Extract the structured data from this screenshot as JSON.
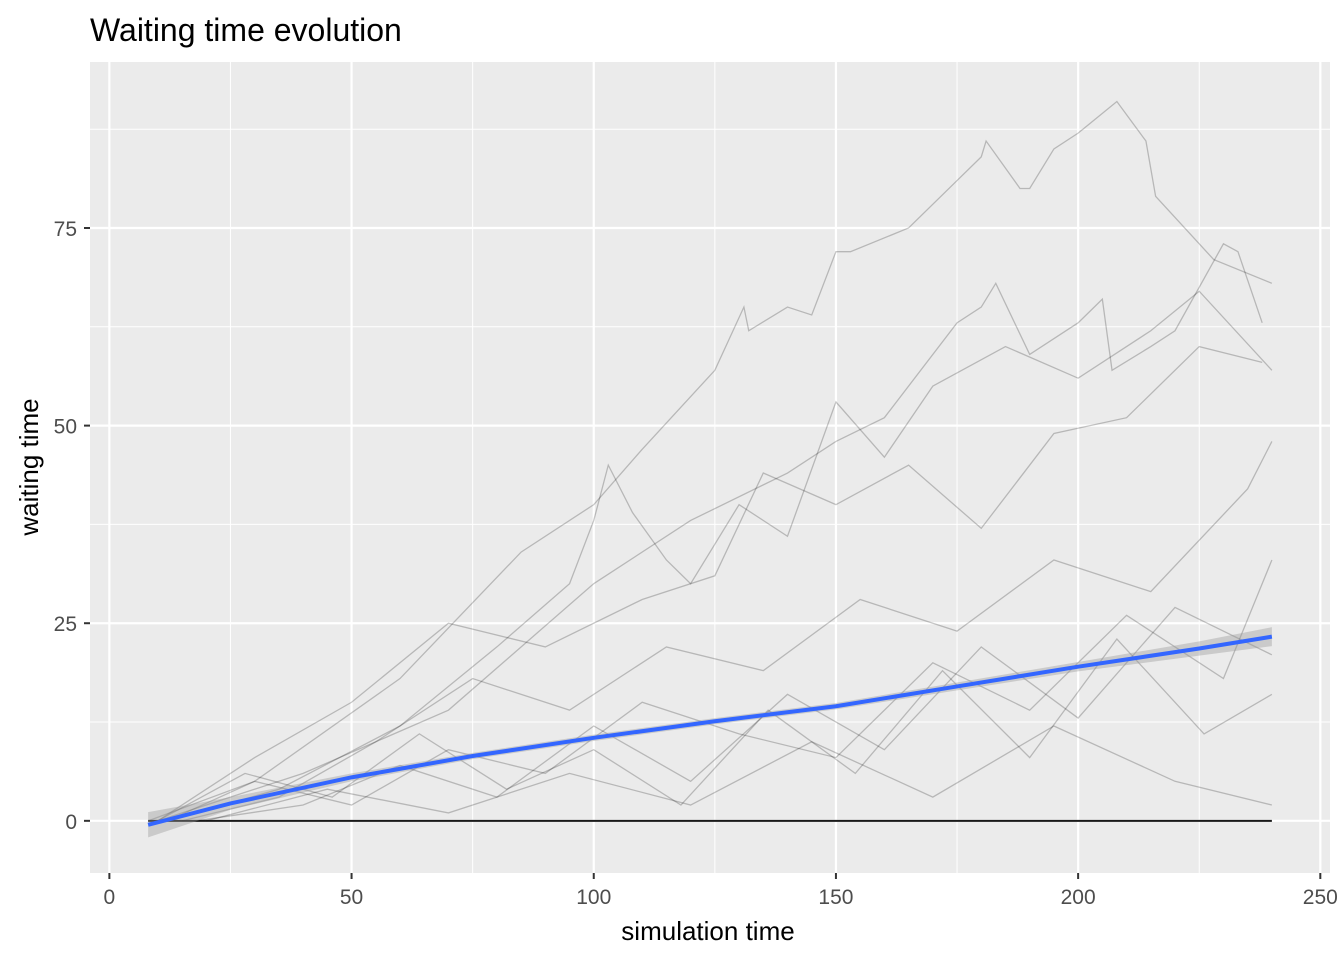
{
  "chart_data": {
    "type": "line",
    "title": "Waiting time evolution",
    "xlabel": "simulation time",
    "ylabel": "waiting time",
    "xlim": [
      -4,
      252
    ],
    "ylim": [
      -6.6,
      96
    ],
    "xticks": [
      0,
      50,
      100,
      150,
      200,
      250
    ],
    "yticks": [
      0,
      25,
      50,
      75
    ],
    "grid": true,
    "background": "#EBEBEB",
    "series_color": "#000000",
    "smooth_color": "#3366FF",
    "series": [
      {
        "x": [
          8,
          30,
          60,
          85,
          100,
          110,
          125,
          131,
          132,
          140,
          145,
          150,
          153,
          165,
          175,
          180,
          181,
          188,
          190,
          195,
          200,
          208,
          214,
          216,
          228,
          240
        ],
        "y": [
          0,
          5,
          18,
          34,
          40,
          47,
          57,
          65,
          62,
          65,
          64,
          72,
          72,
          75,
          81,
          84,
          86,
          80,
          80,
          85,
          87,
          91,
          86,
          79,
          71,
          68
        ]
      },
      {
        "x": [
          10,
          40,
          70,
          100,
          120,
          140,
          150,
          160,
          175,
          180,
          183,
          190,
          200,
          205,
          207,
          215,
          220,
          230,
          233,
          238
        ],
        "y": [
          0,
          6,
          14,
          30,
          38,
          44,
          48,
          51,
          63,
          65,
          68,
          59,
          63,
          66,
          57,
          60,
          62,
          73,
          72,
          63
        ]
      },
      {
        "x": [
          12,
          35,
          60,
          80,
          95,
          100,
          103,
          108,
          115,
          120,
          130,
          140,
          150,
          160,
          170,
          185,
          200,
          215,
          225,
          240
        ],
        "y": [
          0,
          4,
          12,
          22,
          30,
          38,
          45,
          39,
          33,
          30,
          40,
          36,
          53,
          46,
          55,
          60,
          56,
          62,
          67,
          57
        ]
      },
      {
        "x": [
          10,
          30,
          50,
          70,
          90,
          110,
          125,
          135,
          150,
          165,
          180,
          195,
          210,
          225,
          238
        ],
        "y": [
          0,
          8,
          15,
          25,
          22,
          28,
          31,
          44,
          40,
          45,
          37,
          49,
          51,
          60,
          58
        ]
      },
      {
        "x": [
          15,
          35,
          55,
          75,
          95,
          115,
          135,
          155,
          175,
          195,
          215,
          235,
          240
        ],
        "y": [
          0,
          3,
          10,
          18,
          14,
          22,
          19,
          28,
          24,
          33,
          29,
          42,
          48
        ]
      },
      {
        "x": [
          12,
          30,
          50,
          70,
          90,
          110,
          130,
          150,
          170,
          190,
          210,
          230,
          240
        ],
        "y": [
          0,
          5,
          2,
          9,
          6,
          15,
          11,
          8,
          20,
          14,
          26,
          18,
          33
        ]
      },
      {
        "x": [
          18,
          40,
          60,
          80,
          100,
          120,
          140,
          160,
          180,
          200,
          220,
          240
        ],
        "y": [
          0,
          2,
          7,
          3,
          12,
          5,
          16,
          9,
          22,
          13,
          27,
          21
        ]
      },
      {
        "x": [
          10,
          28,
          46,
          64,
          82,
          100,
          118,
          136,
          154,
          172,
          190,
          208,
          226,
          240
        ],
        "y": [
          0,
          6,
          3,
          11,
          4,
          9,
          2,
          14,
          6,
          19,
          8,
          23,
          11,
          16
        ]
      },
      {
        "x": [
          20,
          45,
          70,
          95,
          120,
          145,
          170,
          195,
          220,
          240
        ],
        "y": [
          0,
          4,
          1,
          6,
          2,
          10,
          3,
          12,
          5,
          2
        ]
      },
      {
        "x": [
          8,
          240
        ],
        "y": [
          0,
          0
        ]
      }
    ],
    "smooth": {
      "x": [
        8,
        25,
        50,
        75,
        100,
        125,
        150,
        175,
        200,
        225,
        240
      ],
      "y": [
        -0.5,
        2.2,
        5.5,
        8.2,
        10.5,
        12.6,
        14.5,
        17,
        19.5,
        21.8,
        23.3
      ],
      "se": [
        1.6,
        0.8,
        0.5,
        0.4,
        0.4,
        0.4,
        0.4,
        0.5,
        0.6,
        0.9,
        1.2
      ]
    }
  }
}
